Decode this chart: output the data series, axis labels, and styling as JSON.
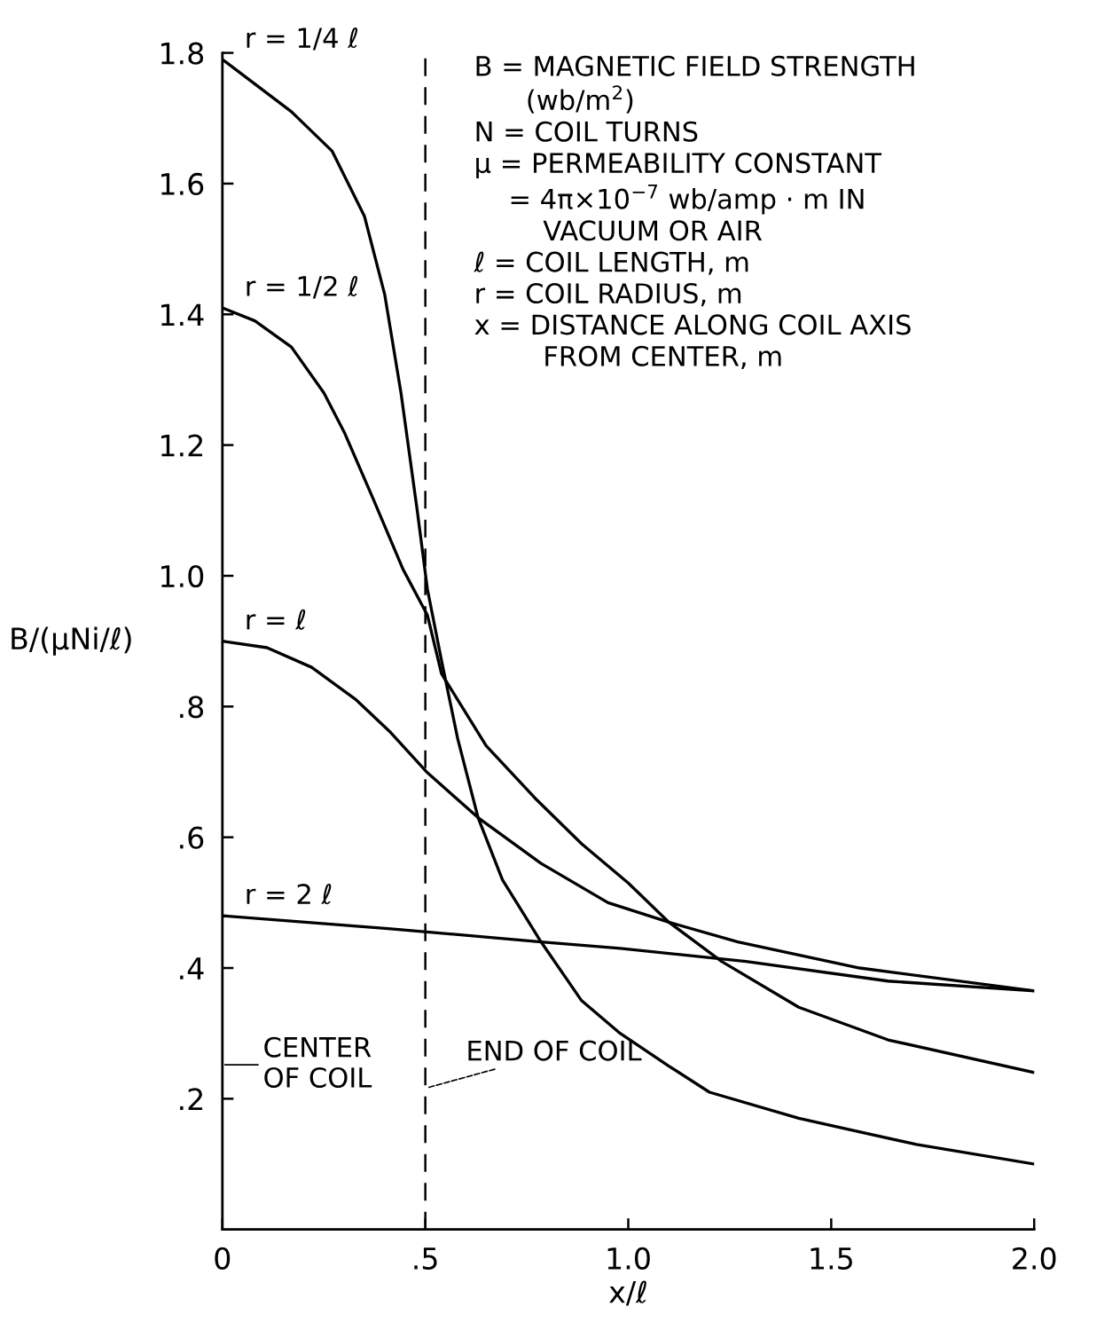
{
  "chart_data": {
    "type": "line",
    "xlabel": "x/ℓ",
    "ylabel": "B/(μNi/ℓ)",
    "xlim": [
      0,
      2.0
    ],
    "ylim": [
      0,
      1.8
    ],
    "xticks": [
      {
        "value": 0,
        "label": "0"
      },
      {
        "value": 0.5,
        "label": ".5"
      },
      {
        "value": 1.0,
        "label": "1.0"
      },
      {
        "value": 1.5,
        "label": "1.5"
      },
      {
        "value": 2.0,
        "label": "2.0"
      }
    ],
    "yticks": [
      {
        "value": 0.2,
        "label": ".2"
      },
      {
        "value": 0.4,
        "label": ".4"
      },
      {
        "value": 0.6,
        "label": ".6"
      },
      {
        "value": 0.8,
        "label": ".8"
      },
      {
        "value": 1.0,
        "label": "1.0"
      },
      {
        "value": 1.2,
        "label": "1.2"
      },
      {
        "value": 1.4,
        "label": "1.4"
      },
      {
        "value": 1.6,
        "label": "1.6"
      },
      {
        "value": 1.8,
        "label": "1.8"
      }
    ],
    "grid": false,
    "legend": false,
    "marker": "none",
    "line_style": "solid",
    "series": [
      {
        "name": "r = 1/4 ℓ",
        "color": "#000000",
        "x": [
          0,
          0.17,
          0.27,
          0.35,
          0.4,
          0.44,
          0.48,
          0.505,
          0.54,
          0.58,
          0.63,
          0.69,
          0.785,
          0.885,
          0.98,
          1.1,
          1.2,
          1.42,
          1.71,
          2.0
        ],
        "values": [
          1.79,
          1.71,
          1.65,
          1.55,
          1.43,
          1.28,
          1.1,
          0.98,
          0.87,
          0.75,
          0.63,
          0.535,
          0.44,
          0.35,
          0.3,
          0.25,
          0.21,
          0.17,
          0.13,
          0.1
        ]
      },
      {
        "name": "r = 1/2 ℓ",
        "color": "#000000",
        "x": [
          0,
          0.08,
          0.17,
          0.25,
          0.3,
          0.37,
          0.445,
          0.505,
          0.54,
          0.65,
          0.77,
          0.885,
          1.0,
          1.1,
          1.23,
          1.42,
          1.64,
          2.0
        ],
        "values": [
          1.41,
          1.39,
          1.35,
          1.28,
          1.22,
          1.12,
          1.01,
          0.94,
          0.85,
          0.74,
          0.66,
          0.59,
          0.53,
          0.47,
          0.41,
          0.34,
          0.29,
          0.24
        ]
      },
      {
        "name": "r = ℓ",
        "color": "#000000",
        "x": [
          0,
          0.11,
          0.22,
          0.33,
          0.415,
          0.503,
          0.63,
          0.785,
          0.95,
          1.1,
          1.27,
          1.57,
          2.0
        ],
        "values": [
          0.9,
          0.89,
          0.86,
          0.81,
          0.76,
          0.7,
          0.63,
          0.56,
          0.5,
          0.47,
          0.44,
          0.4,
          0.365
        ]
      },
      {
        "name": "r = 2 ℓ",
        "color": "#000000",
        "x": [
          0,
          0.415,
          0.785,
          0.98,
          1.29,
          1.64,
          2.0
        ],
        "values": [
          0.48,
          0.46,
          0.44,
          0.43,
          0.41,
          0.38,
          0.365
        ]
      }
    ],
    "ref_lines": [
      {
        "axis": "x",
        "value": 0.5,
        "label": "END OF COIL",
        "color": "#000000",
        "line_style": "dashed"
      }
    ],
    "annotations": [
      "B = MAGNETIC FIELD STRENGTH\n      (wb/m$^{2}$)",
      "N = COIL TURNS",
      "μ = PERMEABILITY CONSTANT\n    = 4π×10$^{−7}$ wb/amp · m IN\n        VACUUM OR AIR",
      "ℓ = COIL LENGTH, m",
      "r = COIL RADIUS, m",
      "x = DISTANCE ALONG COIL AXIS\n        FROM CENTER, m",
      "CENTER\nOF COIL"
    ]
  }
}
